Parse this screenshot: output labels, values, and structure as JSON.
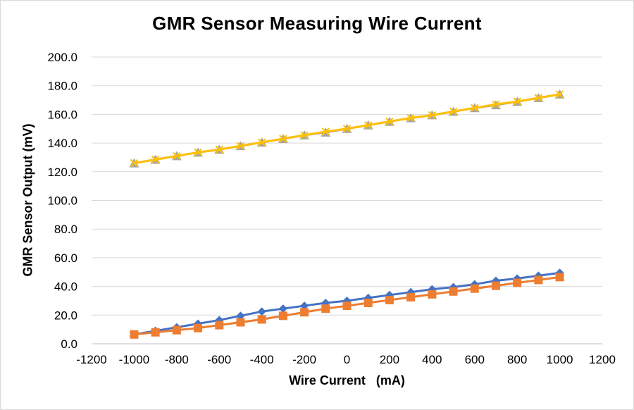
{
  "chart_data": {
    "type": "line",
    "title": "GMR Sensor Measuring Wire Current",
    "xlabel": "Wire Current   (mA)",
    "ylabel": "GMR Sensor Output (mV)",
    "xlim": [
      -1200,
      1200
    ],
    "ylim": [
      0,
      200
    ],
    "x_ticks": [
      "-1200",
      "-1000",
      "-800",
      "-600",
      "-400",
      "-200",
      "0",
      "200",
      "400",
      "600",
      "800",
      "1000",
      "1200"
    ],
    "y_ticks": [
      "0.0",
      "20.0",
      "40.0",
      "60.0",
      "80.0",
      "100.0",
      "120.0",
      "140.0",
      "160.0",
      "180.0",
      "200.0"
    ],
    "grid": "horizontal",
    "legend": "none",
    "x": [
      -1000,
      -900,
      -800,
      -700,
      -600,
      -500,
      -400,
      -300,
      -200,
      -100,
      0,
      100,
      200,
      300,
      400,
      500,
      600,
      700,
      800,
      900,
      1000
    ],
    "series": [
      {
        "color": "#4472c4",
        "marker": "diamond",
        "values": [
          6.5,
          9.0,
          11.5,
          14.0,
          16.5,
          19.5,
          22.5,
          24.5,
          26.5,
          28.5,
          30.0,
          32.0,
          34.0,
          36.0,
          38.0,
          39.5,
          41.5,
          44.0,
          45.5,
          47.5,
          49.5
        ]
      },
      {
        "color": "#ed7d31",
        "marker": "square",
        "values": [
          6.5,
          8.0,
          9.5,
          11.0,
          13.0,
          15.0,
          17.0,
          19.5,
          22.0,
          24.5,
          26.5,
          28.5,
          30.5,
          32.5,
          34.5,
          36.5,
          38.5,
          40.5,
          42.5,
          44.5,
          46.5
        ]
      },
      {
        "color": "#a5a5a5",
        "marker": "triangle",
        "values": [
          126.0,
          128.5,
          131.0,
          133.5,
          135.5,
          138.0,
          140.5,
          143.0,
          145.5,
          147.5,
          150.0,
          152.5,
          155.0,
          157.5,
          159.5,
          162.0,
          164.5,
          166.5,
          169.0,
          171.5,
          174.0
        ]
      },
      {
        "color": "#ffc000",
        "marker": "x",
        "values": [
          126.0,
          128.5,
          131.0,
          133.5,
          135.5,
          138.0,
          140.5,
          143.0,
          145.5,
          148.0,
          150.0,
          152.5,
          155.0,
          157.5,
          159.5,
          162.0,
          164.5,
          167.0,
          169.0,
          171.5,
          174.0
        ]
      }
    ]
  }
}
